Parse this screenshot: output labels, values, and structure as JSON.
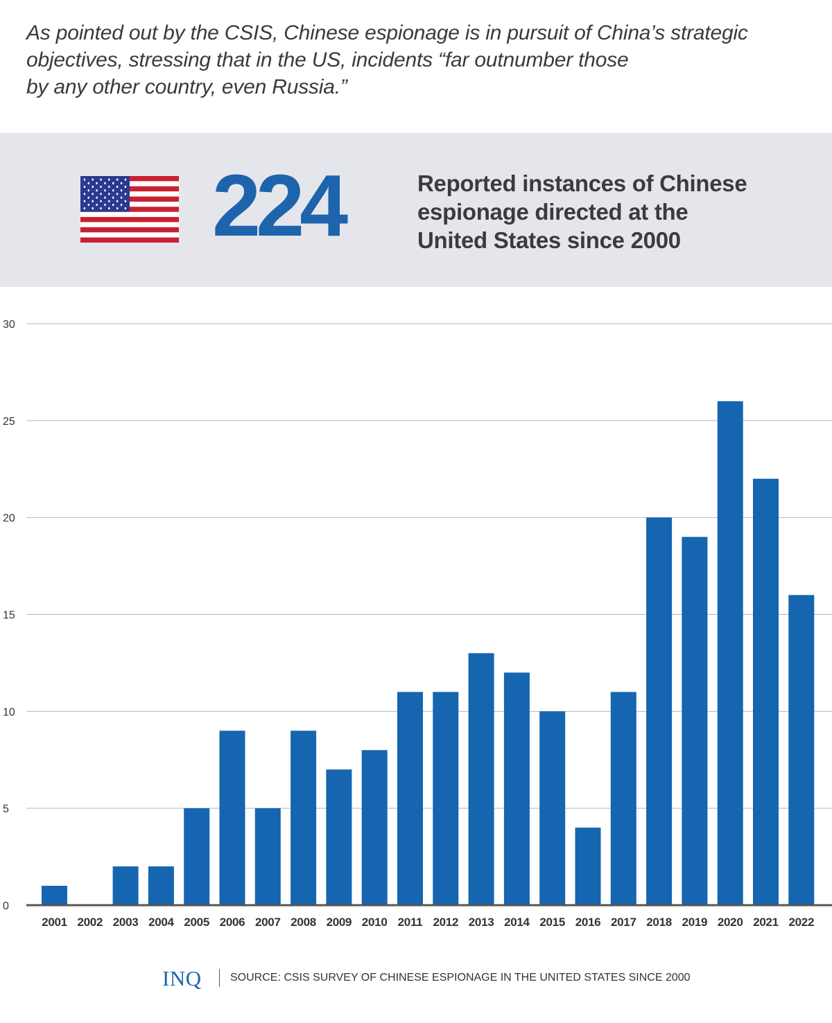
{
  "intro": {
    "lines": [
      "As pointed out by the CSIS, Chinese espionage is in pursuit of China’s strategic",
      "objectives, stressing that in the US, incidents “far outnumber those",
      "by any other country, even Russia.”"
    ]
  },
  "stat": {
    "value": "224",
    "caption_lines": [
      "Reported instances of Chinese",
      "espionage directed at the",
      "United States since 2000"
    ],
    "flag_icon": "us-flag-icon"
  },
  "colors": {
    "accent": "#1d64ad",
    "bar": "#1565b0",
    "panel_bg": "#e5e6eb",
    "grid": "#b5b5b5",
    "axis": "#555555",
    "text": "#333333"
  },
  "chart_data": {
    "type": "bar",
    "title": "",
    "xlabel": "",
    "ylabel": "",
    "ylim": [
      0,
      30
    ],
    "yticks": [
      0,
      5,
      10,
      15,
      20,
      25,
      30
    ],
    "grid": true,
    "categories": [
      "2001",
      "2002",
      "2003",
      "2004",
      "2005",
      "2006",
      "2007",
      "2008",
      "2009",
      "2010",
      "2011",
      "2012",
      "2013",
      "2014",
      "2015",
      "2016",
      "2017",
      "2018",
      "2019",
      "2020",
      "2021",
      "2022"
    ],
    "values": [
      1,
      0,
      2,
      2,
      5,
      9,
      5,
      9,
      7,
      8,
      11,
      11,
      13,
      12,
      10,
      4,
      11,
      20,
      19,
      26,
      22,
      16
    ]
  },
  "footer": {
    "logo": "INQ",
    "source": "SOURCE: CSIS SURVEY OF CHINESE ESPIONAGE IN THE UNITED STATES SINCE 2000"
  }
}
